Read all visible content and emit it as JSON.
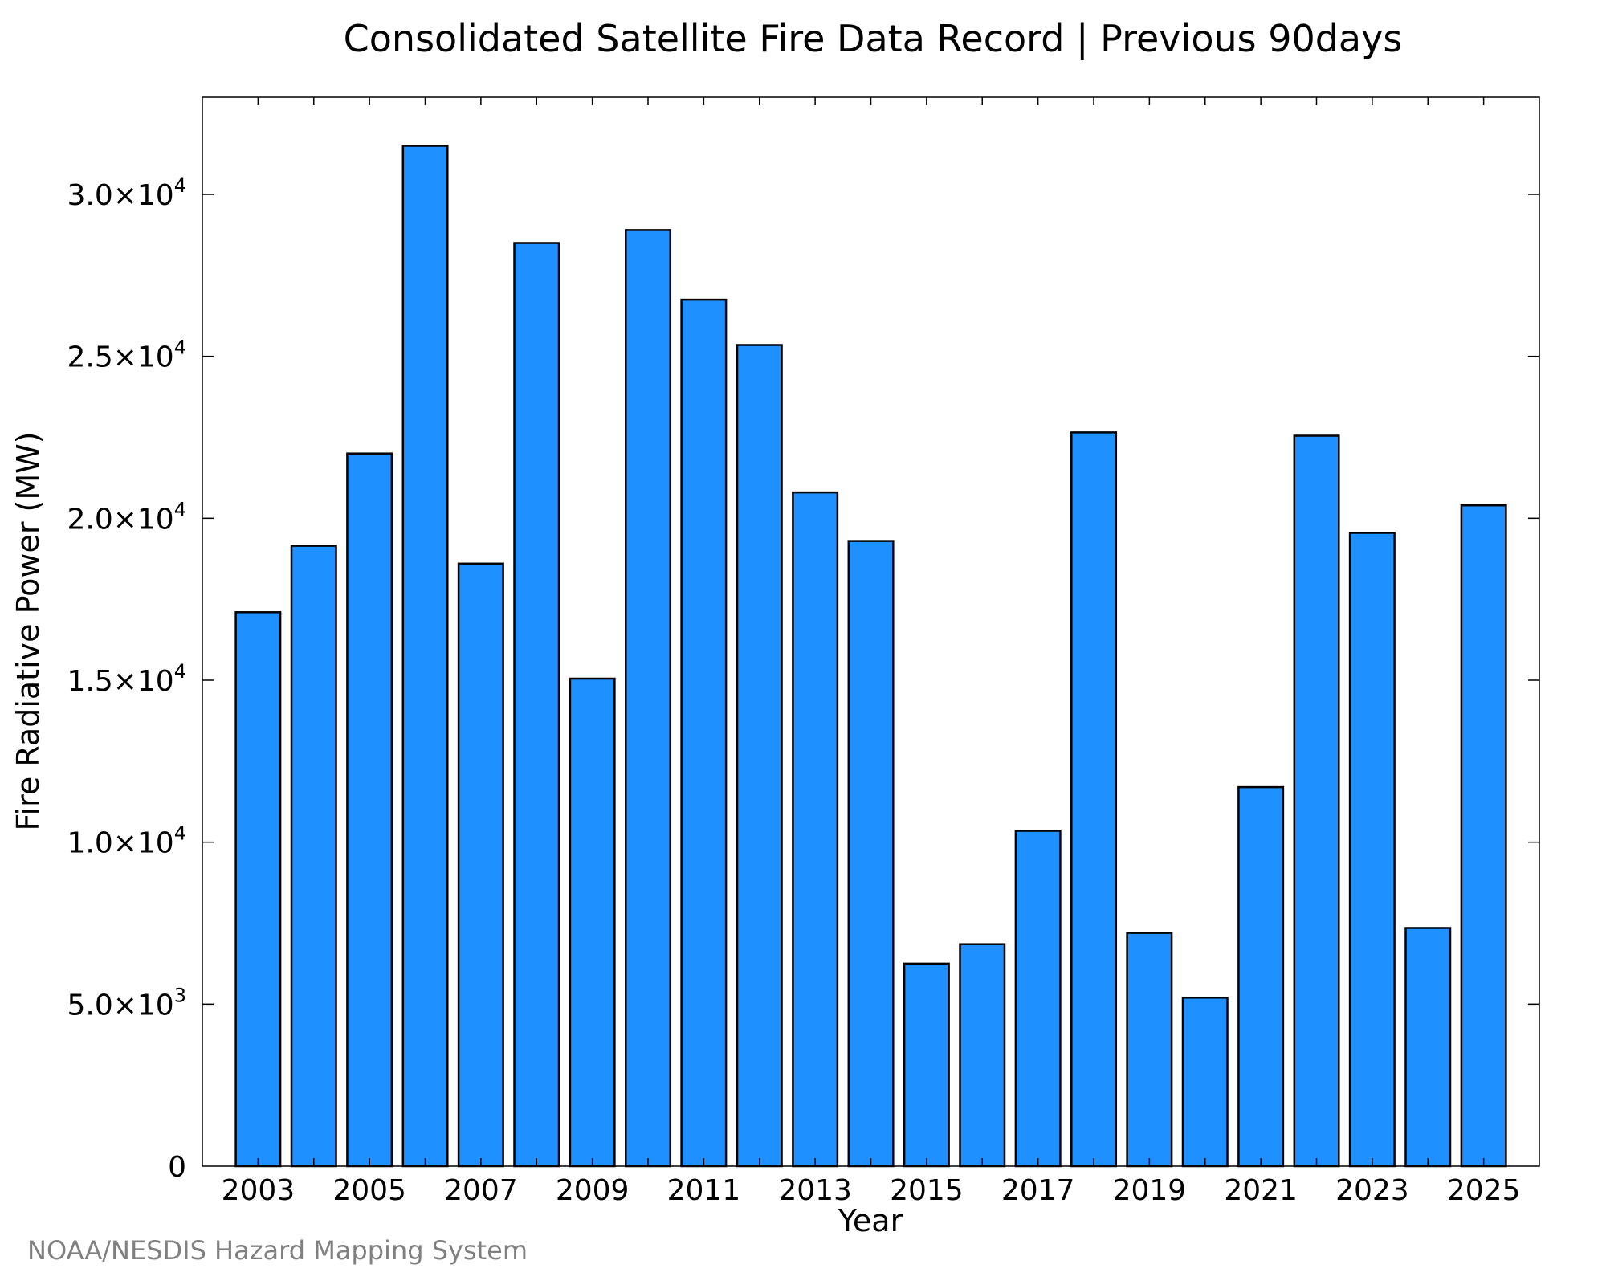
{
  "chart_data": {
    "type": "bar",
    "title": "Consolidated Satellite Fire Data Record | Previous 90days",
    "xlabel": "Year",
    "ylabel": "Fire Radiative Power (MW)",
    "categories": [
      "2003",
      "2004",
      "2005",
      "2006",
      "2007",
      "2008",
      "2009",
      "2010",
      "2011",
      "2012",
      "2013",
      "2014",
      "2015",
      "2016",
      "2017",
      "2018",
      "2019",
      "2020",
      "2021",
      "2022",
      "2023",
      "2024",
      "2025"
    ],
    "values": [
      17100,
      19150,
      22000,
      31500,
      18600,
      28500,
      15050,
      28900,
      26750,
      25350,
      20800,
      19300,
      6250,
      6850,
      10350,
      22650,
      7200,
      5200,
      11700,
      22550,
      19550,
      7350,
      20400
    ],
    "ylim": [
      0,
      33000
    ],
    "xlim": [
      2002,
      2026
    ],
    "x_tick_labels": [
      "2003",
      "2005",
      "2007",
      "2009",
      "2011",
      "2013",
      "2015",
      "2017",
      "2019",
      "2021",
      "2023",
      "2025"
    ],
    "y_ticks": [
      {
        "value": 0,
        "mantissa": "0",
        "exponent": ""
      },
      {
        "value": 5000,
        "mantissa": "5.0×10",
        "exponent": "3"
      },
      {
        "value": 10000,
        "mantissa": "1.0×10",
        "exponent": "4"
      },
      {
        "value": 15000,
        "mantissa": "1.5×10",
        "exponent": "4"
      },
      {
        "value": 20000,
        "mantissa": "2.0×10",
        "exponent": "4"
      },
      {
        "value": 25000,
        "mantissa": "2.5×10",
        "exponent": "4"
      },
      {
        "value": 30000,
        "mantissa": "3.0×10",
        "exponent": "4"
      }
    ],
    "bar_color": "#1E90FF",
    "bar_edge_color": "#000000",
    "grid": false
  },
  "credit": "NOAA/NESDIS Hazard Mapping System"
}
